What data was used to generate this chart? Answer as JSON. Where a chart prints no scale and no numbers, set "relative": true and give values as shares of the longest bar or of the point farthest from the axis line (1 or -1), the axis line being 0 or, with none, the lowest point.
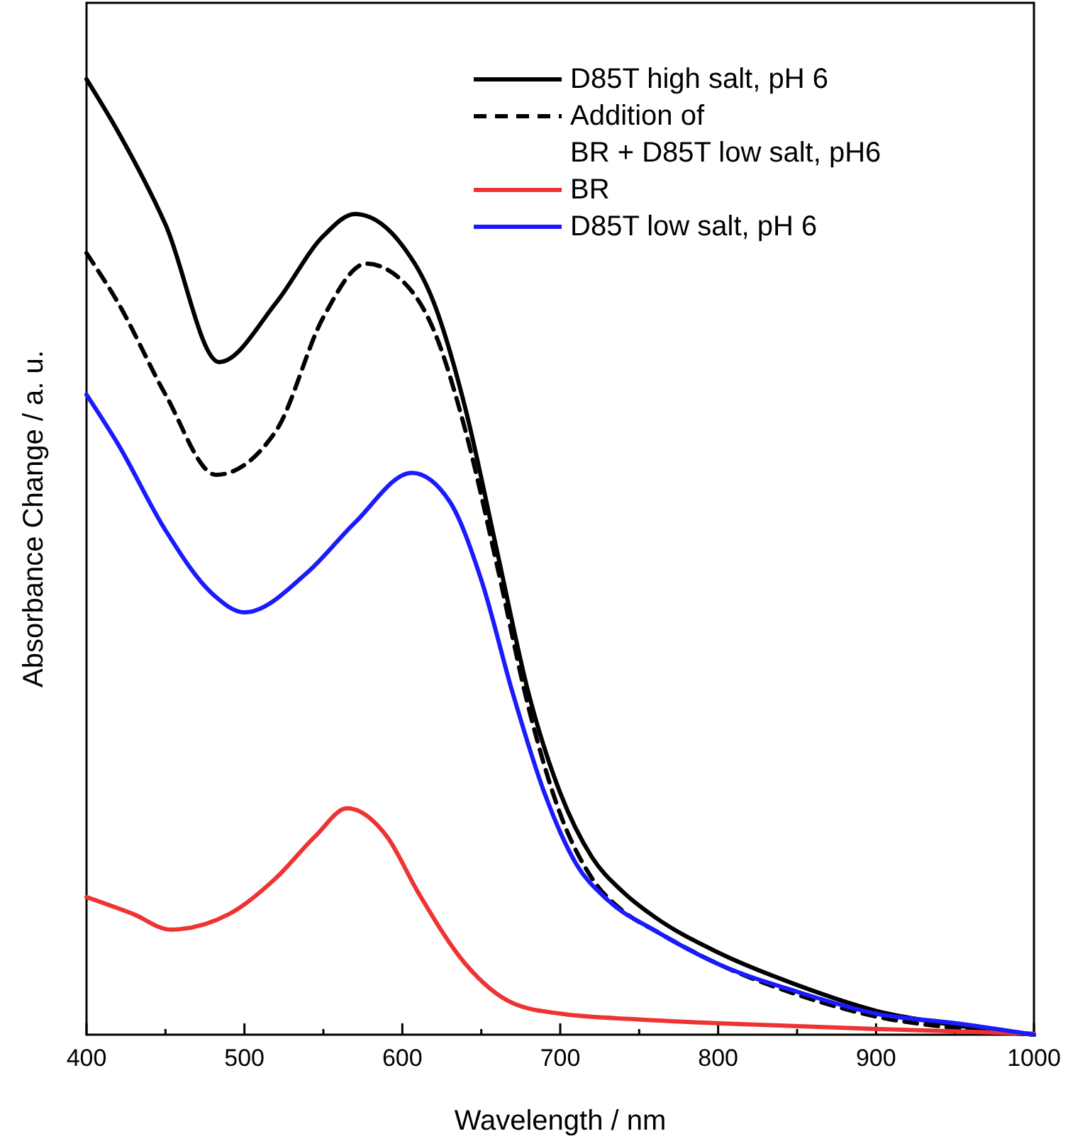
{
  "chart_data": {
    "type": "line",
    "relative": true,
    "xlabel": "Wavelength / nm",
    "ylabel": "Absorbance Change / a. u.",
    "xlim": [
      400,
      1000
    ],
    "xticks": [
      400,
      500,
      600,
      700,
      800,
      900,
      1000
    ],
    "legend": "top right",
    "grid": false,
    "series": [
      {
        "name": "D85T high salt, pH 6",
        "color": "#000000",
        "line_style": "solid",
        "x": [
          400,
          420,
          450,
          484,
          520,
          550,
          570,
          600,
          620,
          640,
          660,
          680,
          700,
          720,
          740,
          760,
          800,
          850,
          900,
          950,
          1000
        ],
        "values": [
          1.0,
          0.945,
          0.848,
          0.704,
          0.766,
          0.836,
          0.859,
          0.826,
          0.766,
          0.655,
          0.506,
          0.357,
          0.253,
          0.186,
          0.149,
          0.123,
          0.086,
          0.052,
          0.025,
          0.01,
          0
        ]
      },
      {
        "name": "Addition of\nBR + D85T low salt, pH6",
        "color": "#000000",
        "line_style": "dashed",
        "x": [
          400,
          420,
          450,
          482,
          520,
          550,
          577,
          600,
          620,
          640,
          660,
          680,
          700,
          720,
          740,
          760,
          800,
          850,
          900,
          950,
          1000
        ],
        "values": [
          0.818,
          0.766,
          0.67,
          0.586,
          0.632,
          0.751,
          0.807,
          0.789,
          0.737,
          0.632,
          0.491,
          0.342,
          0.231,
          0.164,
          0.129,
          0.109,
          0.074,
          0.042,
          0.019,
          0.007,
          0
        ]
      },
      {
        "name": "BR",
        "color": "#ee3333",
        "line_style": "solid",
        "x": [
          400,
          430,
          453,
          490,
          520,
          545,
          565,
          590,
          610,
          640,
          670,
          700,
          750,
          800,
          900,
          1000
        ],
        "values": [
          0.144,
          0.126,
          0.11,
          0.126,
          0.164,
          0.208,
          0.237,
          0.208,
          0.149,
          0.074,
          0.033,
          0.022,
          0.016,
          0.012,
          0.006,
          0.001
        ]
      },
      {
        "name": "D85T low salt, pH 6",
        "color": "#1a1aff",
        "line_style": "solid",
        "x": [
          400,
          420,
          450,
          480,
          500,
          540,
          570,
          606,
          630,
          650,
          670,
          690,
          710,
          730,
          760,
          800,
          850,
          900,
          950,
          1000
        ],
        "values": [
          0.67,
          0.618,
          0.528,
          0.461,
          0.442,
          0.484,
          0.536,
          0.588,
          0.558,
          0.476,
          0.357,
          0.253,
          0.179,
          0.141,
          0.109,
          0.074,
          0.045,
          0.022,
          0.012,
          0
        ]
      }
    ]
  }
}
